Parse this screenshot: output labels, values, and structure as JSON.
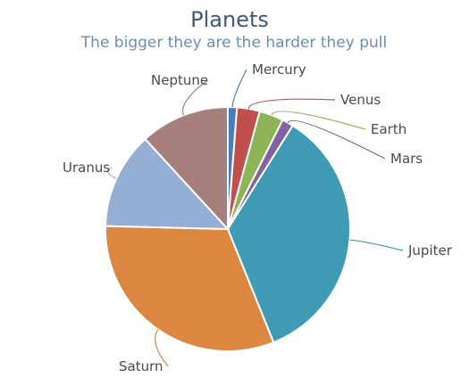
{
  "chart_data": {
    "type": "pie",
    "title": "Planets",
    "subtitle": "The bigger they are the harder they pull",
    "start_angle_deg": -90,
    "direction": "clockwise",
    "slices": [
      {
        "label": "Mercury",
        "value": 1.2,
        "color": "#4a7ebb",
        "label_side": "right"
      },
      {
        "label": "Venus",
        "value": 3.0,
        "color": "#c0504d",
        "label_side": "right"
      },
      {
        "label": "Earth",
        "value": 3.2,
        "color": "#8db557",
        "label_side": "right"
      },
      {
        "label": "Mars",
        "value": 1.5,
        "color": "#8064a2",
        "label_side": "right"
      },
      {
        "label": "Jupiter",
        "value": 35.0,
        "color": "#3f9bb4",
        "label_side": "right"
      },
      {
        "label": "Saturn",
        "value": 31.5,
        "color": "#db8742",
        "label_side": "left"
      },
      {
        "label": "Uranus",
        "value": 12.8,
        "color": "#94aed5",
        "label_side": "left"
      },
      {
        "label": "Neptune",
        "value": 11.8,
        "color": "#a67f7c",
        "label_side": "left"
      }
    ]
  }
}
